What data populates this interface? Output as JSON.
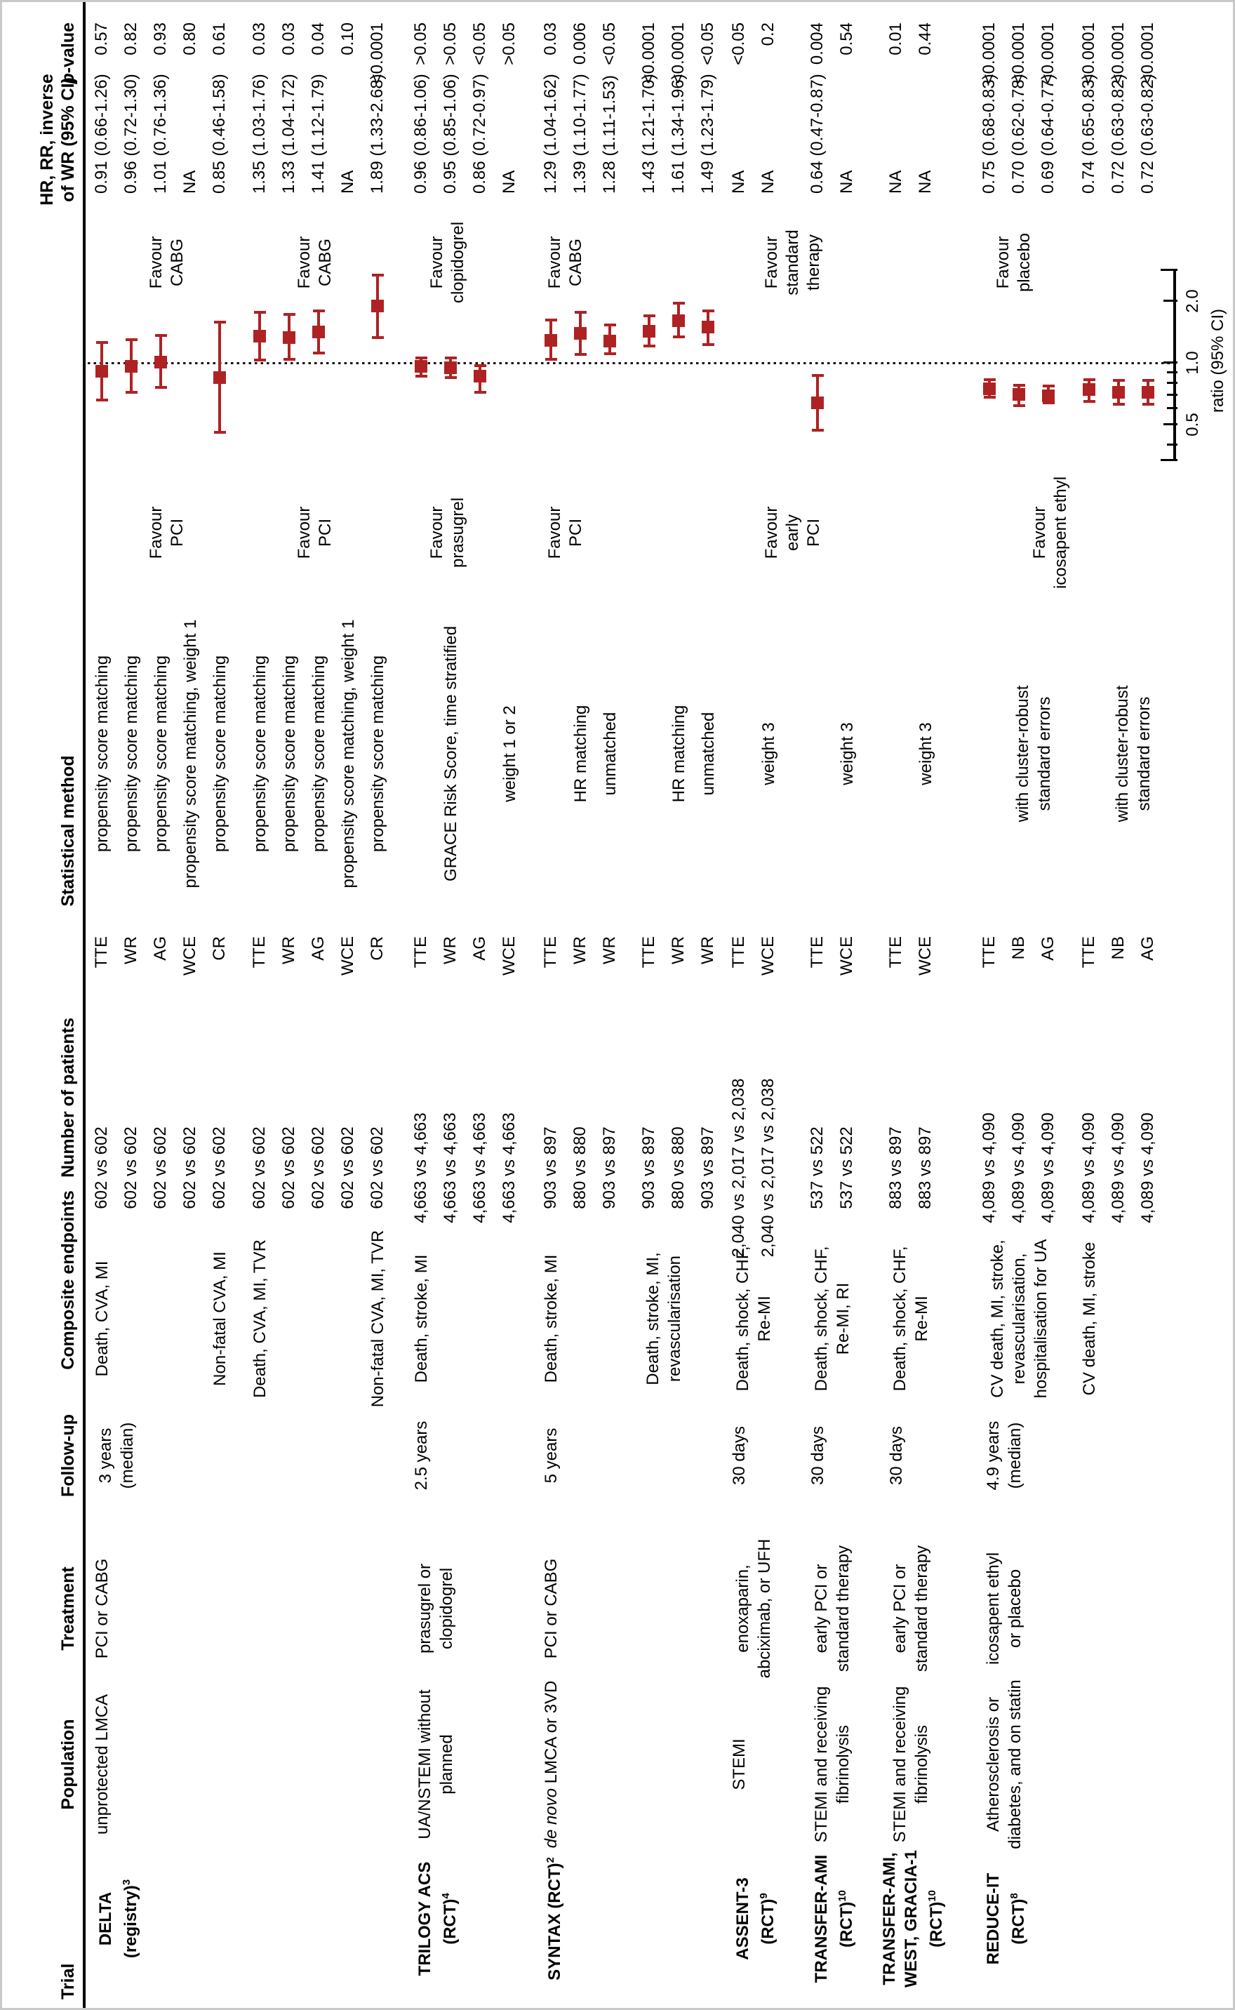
{
  "figure_type": "forest-plot-table",
  "accent_color": "#ae2224",
  "header": {
    "trial": "Trial",
    "population": "Population",
    "treatment": "Treatment",
    "followup": "Follow-up",
    "endpoints": "Composite endpoints",
    "patients": "Number of patients",
    "method": "Statistical method",
    "hr_line1": "HR, RR, inverse",
    "hr_line2": "of WR (95% CI)",
    "pvalue": "*p*-value"
  },
  "plot": {
    "axis_title": "ratio (95% CI)",
    "x_ref": 1.0,
    "scale": "log",
    "ticks": [
      {
        "v": 0.335,
        "len": 20,
        "label": ""
      },
      {
        "v": 0.4,
        "len": 11,
        "label": ""
      },
      {
        "v": 0.5,
        "len": 16,
        "label": "0.5"
      },
      {
        "v": 0.6,
        "len": 11,
        "label": ""
      },
      {
        "v": 0.7,
        "len": 11,
        "label": ""
      },
      {
        "v": 0.8,
        "len": 11,
        "label": ""
      },
      {
        "v": 0.9,
        "len": 11,
        "label": ""
      },
      {
        "v": 1.0,
        "len": 16,
        "label": "1.0"
      },
      {
        "v": 2.0,
        "len": 16,
        "label": "2.0"
      },
      {
        "v": 2.85,
        "len": 20,
        "label": ""
      }
    ]
  },
  "favours": [
    {
      "side": "left",
      "lines": [
        "Favour",
        "PCI"
      ],
      "y": 238
    },
    {
      "side": "right",
      "lines": [
        "Favour",
        "CABG"
      ],
      "y": 238
    },
    {
      "side": "left",
      "lines": [
        "Favour",
        "PCI"
      ],
      "y": 449
    },
    {
      "side": "right",
      "lines": [
        "Favour",
        "CABG"
      ],
      "y": 449
    },
    {
      "side": "left",
      "lines": [
        "Favour",
        "prasugrel"
      ],
      "y": 638
    },
    {
      "side": "right",
      "lines": [
        "Favour",
        "clopidogrel"
      ],
      "y": 638
    },
    {
      "side": "left",
      "lines": [
        "Favour",
        "PCI"
      ],
      "y": 806
    },
    {
      "side": "right",
      "lines": [
        "Favour",
        "CABG"
      ],
      "y": 806
    },
    {
      "side": "left",
      "lines": [
        "Favour",
        "early",
        "PCI"
      ],
      "y": 1130
    },
    {
      "side": "right",
      "lines": [
        "Favour",
        "standard",
        "therapy"
      ],
      "y": 1130
    },
    {
      "side": "left",
      "lines": [
        "Favour",
        "icosapent ethyl"
      ],
      "y": 1497
    },
    {
      "side": "right",
      "lines": [
        "Favour",
        "placebo"
      ],
      "y": 1445
    }
  ],
  "blocks": [
    {
      "col": "trial",
      "bold": true,
      "lines": [
        "DELTA",
        "(registry)^{3}"
      ],
      "y": 166
    },
    {
      "col": "population",
      "lines": [
        "unprotected LMCA"
      ],
      "y": 145
    },
    {
      "col": "treatment",
      "lines": [
        "PCI or CABG"
      ],
      "y": 145
    },
    {
      "col": "followup",
      "lines": [
        "3 years",
        "(median)"
      ],
      "y": 166
    },
    {
      "col": "endpoint",
      "lines": [
        "Death, CVA, MI"
      ],
      "y": 145
    },
    {
      "col": "endpoint",
      "lines": [
        "Non-fatal CVA, MI"
      ],
      "y": 313
    },
    {
      "col": "endpoint",
      "lines": [
        "Death, CVA, MI, TVR"
      ],
      "y": 370
    },
    {
      "col": "endpoint",
      "lines": [
        "Non-fatal CVA, MI, TVR"
      ],
      "y": 538
    },
    {
      "col": "trial",
      "bold": true,
      "lines": [
        "TRILOGY ACS",
        "(RCT)^{4}"
      ],
      "y": 621
    },
    {
      "col": "population",
      "lines": [
        "UA/NSTEMI without",
        "planned"
      ],
      "y": 621
    },
    {
      "col": "treatment",
      "lines": [
        "prasugrel or",
        "clopidogrel"
      ],
      "y": 621
    },
    {
      "col": "followup",
      "lines": [
        "2.5 years"
      ],
      "y": 600
    },
    {
      "col": "endpoint",
      "lines": [
        "Death, stroke, MI"
      ],
      "y": 600
    },
    {
      "col": "trial",
      "bold": true,
      "lines": [
        "SYNTAX (RCT)^{2}"
      ],
      "y": 785
    },
    {
      "col": "population",
      "lines": [
        "*de novo* LMCA or 3VD"
      ],
      "y": 785
    },
    {
      "col": "treatment",
      "lines": [
        "PCI or CABG"
      ],
      "y": 785
    },
    {
      "col": "followup",
      "lines": [
        "5 years"
      ],
      "y": 785
    },
    {
      "col": "endpoint",
      "lines": [
        "Death, stroke, MI"
      ],
      "y": 785
    },
    {
      "col": "endpoint",
      "lines": [
        "Death, stroke, MI,",
        "revascularisation"
      ],
      "y": 946
    },
    {
      "col": "trial",
      "bold": true,
      "lines": [
        "ASSENT-3",
        "(RCT)^{9}"
      ],
      "y": 1074
    },
    {
      "col": "population",
      "lines": [
        "STEMI"
      ],
      "y": 1053
    },
    {
      "col": "treatment",
      "lines": [
        "enoxaparin,",
        "abciximab, or UFH"
      ],
      "y": 1074
    },
    {
      "col": "followup",
      "lines": [
        "30 days"
      ],
      "y": 1053
    },
    {
      "col": "endpoint",
      "lines": [
        "Death, shock, CHF,",
        "Re-MI"
      ],
      "y": 1074
    },
    {
      "col": "trial",
      "bold": true,
      "lines": [
        "TRANSFER-AMI",
        "(RCT)^{10}"
      ],
      "y": 1186
    },
    {
      "col": "population",
      "lines": [
        "STEMI and receiving",
        "fibrinolysis"
      ],
      "y": 1186
    },
    {
      "col": "treatment",
      "lines": [
        "early PCI or",
        "standard therapy"
      ],
      "y": 1186
    },
    {
      "col": "followup",
      "lines": [
        "30 days"
      ],
      "y": 1165
    },
    {
      "col": "endpoint",
      "lines": [
        "Death, shock, CHF,",
        "Re-MI, RI"
      ],
      "y": 1186
    },
    {
      "col": "trial",
      "bold": true,
      "lines": [
        "TRANSFER-AMI,",
        "WEST, GRACIA-1",
        "(RCT)^{10}"
      ],
      "y": 1298
    },
    {
      "col": "population",
      "lines": [
        "STEMI and receiving",
        "fibrinolysis"
      ],
      "y": 1298
    },
    {
      "col": "treatment",
      "lines": [
        "early PCI or",
        "standard therapy"
      ],
      "y": 1298
    },
    {
      "col": "followup",
      "lines": [
        "30 days"
      ],
      "y": 1277
    },
    {
      "col": "endpoint",
      "lines": [
        "Death, shock, CHF,",
        "Re-MI"
      ],
      "y": 1298
    },
    {
      "col": "trial",
      "bold": true,
      "lines": [
        "REDUCE-IT",
        "(RCT)^{8}"
      ],
      "y": 1431
    },
    {
      "col": "population",
      "lines": [
        "Atherosclerosis or",
        "diabetes, and on statin"
      ],
      "y": 1431
    },
    {
      "col": "treatment",
      "lines": [
        "icosapent ethyl",
        "or placebo"
      ],
      "y": 1431
    },
    {
      "col": "followup",
      "lines": [
        "4.9 years",
        "(median)"
      ],
      "y": 1431
    },
    {
      "col": "endpoint",
      "lines": [
        "CV death, MI, stroke,",
        "revascularisation,",
        "hospitalisation for UA"
      ],
      "y": 1452
    },
    {
      "col": "endpoint",
      "lines": [
        "CV death, MI, stroke"
      ],
      "y": 1552
    },
    {
      "col": "method",
      "lines": [
        "propensity score matching"
      ],
      "y": 145
    },
    {
      "col": "method",
      "lines": [
        "propensity score matching"
      ],
      "y": 187
    },
    {
      "col": "method",
      "lines": [
        "propensity score matching"
      ],
      "y": 229
    },
    {
      "col": "method",
      "lines": [
        "propensity score matching, weight 1"
      ],
      "y": 271
    },
    {
      "col": "method",
      "lines": [
        "propensity score matching"
      ],
      "y": 313
    },
    {
      "col": "method",
      "lines": [
        "propensity score matching"
      ],
      "y": 370
    },
    {
      "col": "method",
      "lines": [
        "propensity score matching"
      ],
      "y": 412
    },
    {
      "col": "method",
      "lines": [
        "propensity score matching"
      ],
      "y": 454
    },
    {
      "col": "method",
      "lines": [
        "propensity score matching, weight 1"
      ],
      "y": 496
    },
    {
      "col": "method",
      "lines": [
        "propensity score matching"
      ],
      "y": 538
    },
    {
      "col": "method",
      "lines": [
        "GRACE Risk Score, time stratified"
      ],
      "y": 642
    },
    {
      "col": "method",
      "lines": [
        "weight 1 or 2"
      ],
      "y": 726
    },
    {
      "col": "method",
      "lines": [
        "HR matching"
      ],
      "y": 827
    },
    {
      "col": "method",
      "lines": [
        "unmatched"
      ],
      "y": 869
    },
    {
      "col": "method",
      "lines": [
        "HR matching"
      ],
      "y": 967
    },
    {
      "col": "method",
      "lines": [
        "unmatched"
      ],
      "y": 1009
    },
    {
      "col": "method",
      "lines": [
        "weight 3"
      ],
      "y": 1095
    },
    {
      "col": "method",
      "lines": [
        "weight 3"
      ],
      "y": 1207
    },
    {
      "col": "method",
      "lines": [
        "weight 3"
      ],
      "y": 1319
    },
    {
      "col": "method",
      "lines": [
        "with cluster-robust",
        "standard errors"
      ],
      "y": 1473
    },
    {
      "col": "method",
      "lines": [
        "with cluster-robust",
        "standard errors"
      ],
      "y": 1615
    }
  ],
  "rows": [
    {
      "y": 145,
      "code": "TTE",
      "patients": "602 vs 602",
      "hr": "0.91 (0.66-1.26)",
      "p": "0.57",
      "pt": [
        0.91,
        0.66,
        1.26
      ]
    },
    {
      "y": 187,
      "code": "WR",
      "patients": "602 vs 602",
      "hr": "0.96 (0.72-1.30)",
      "p": "0.82",
      "pt": [
        0.96,
        0.72,
        1.3
      ]
    },
    {
      "y": 229,
      "code": "AG",
      "patients": "602 vs 602",
      "hr": "1.01 (0.76-1.36)",
      "p": "0.93",
      "pt": [
        1.01,
        0.76,
        1.36
      ]
    },
    {
      "y": 271,
      "code": "WCE",
      "patients": "602 vs 602",
      "hr": "NA",
      "p": "0.80",
      "pt": null
    },
    {
      "y": 313,
      "code": "CR",
      "patients": "602 vs 602",
      "hr": "0.85 (0.46-1.58)",
      "p": "0.61",
      "pt": [
        0.85,
        0.46,
        1.58
      ]
    },
    {
      "y": 370,
      "code": "TTE",
      "patients": "602 vs 602",
      "hr": "1.35 (1.03-1.76)",
      "p": "0.03",
      "pt": [
        1.35,
        1.03,
        1.76
      ]
    },
    {
      "y": 412,
      "code": "WR",
      "patients": "602 vs 602",
      "hr": "1.33 (1.04-1.72)",
      "p": "0.03",
      "pt": [
        1.33,
        1.04,
        1.72
      ]
    },
    {
      "y": 454,
      "code": "AG",
      "patients": "602 vs 602",
      "hr": "1.41 (1.12-1.79)",
      "p": "0.04",
      "pt": [
        1.41,
        1.12,
        1.79
      ]
    },
    {
      "y": 496,
      "code": "WCE",
      "patients": "602 vs 602",
      "hr": "NA",
      "p": "0.10",
      "pt": null
    },
    {
      "y": 538,
      "code": "CR",
      "patients": "602 vs 602",
      "hr": "1.89 (1.33-2.68)",
      "p": "<0.0001",
      "pt": [
        1.89,
        1.33,
        2.68
      ]
    },
    {
      "y": 600,
      "code": "TTE",
      "patients": "4,663 vs 4,663",
      "hr": "0.96 (0.86-1.06)",
      "p": ">0.05",
      "pt": [
        0.96,
        0.86,
        1.06
      ]
    },
    {
      "y": 642,
      "code": "WR",
      "patients": "4,663 vs 4,663",
      "hr": "0.95 (0.85-1.06)",
      "p": ">0.05",
      "pt": [
        0.95,
        0.85,
        1.06
      ]
    },
    {
      "y": 684,
      "code": "AG",
      "patients": "4,663 vs 4,663",
      "hr": "0.86 (0.72-0.97)",
      "p": "<0.05",
      "pt": [
        0.86,
        0.72,
        0.97
      ]
    },
    {
      "y": 726,
      "code": "WCE",
      "patients": "4,663 vs 4,663",
      "hr": "NA",
      "p": ">0.05",
      "pt": null
    },
    {
      "y": 785,
      "code": "TTE",
      "patients": "903 vs 897",
      "hr": "1.29 (1.04-1.62)",
      "p": "0.03",
      "pt": [
        1.29,
        1.04,
        1.62
      ]
    },
    {
      "y": 827,
      "code": "WR",
      "patients": "880 vs 880",
      "hr": "1.39 (1.10-1.77)",
      "p": "0.006",
      "pt": [
        1.39,
        1.1,
        1.77
      ]
    },
    {
      "y": 869,
      "code": "WR",
      "patients": "903 vs 897",
      "hr": "1.28 (1.11-1.53)",
      "p": "<0.05",
      "pt": [
        1.28,
        1.11,
        1.53
      ]
    },
    {
      "y": 925,
      "code": "TTE",
      "patients": "903 vs 897",
      "hr": "1.43 (1.21-1.70)",
      "p": "<0.0001",
      "pt": [
        1.43,
        1.21,
        1.7
      ]
    },
    {
      "y": 967,
      "code": "WR",
      "patients": "880 vs 880",
      "hr": "1.61 (1.34-1.96)",
      "p": "<0.0001",
      "pt": [
        1.61,
        1.34,
        1.96
      ]
    },
    {
      "y": 1009,
      "code": "WR",
      "patients": "903 vs 897",
      "hr": "1.49 (1.23-1.79)",
      "p": "<0.05",
      "pt": [
        1.49,
        1.23,
        1.79
      ]
    },
    {
      "y": 1053,
      "code": "TTE",
      "patients": "2,040 vs 2,017 vs 2,038",
      "hr": "NA",
      "p": "<0.05",
      "pt": null
    },
    {
      "y": 1095,
      "code": "WCE",
      "patients": "2,040 vs 2,017 vs 2,038",
      "hr": "NA",
      "p": "0.2",
      "pt": null
    },
    {
      "y": 1165,
      "code": "TTE",
      "patients": "537 vs 522",
      "hr": "0.64 (0.47-0.87)",
      "p": "0.004",
      "pt": [
        0.64,
        0.47,
        0.87
      ]
    },
    {
      "y": 1207,
      "code": "WCE",
      "patients": "537 vs 522",
      "hr": "NA",
      "p": "0.54",
      "pt": null
    },
    {
      "y": 1277,
      "code": "TTE",
      "patients": "883 vs 897",
      "hr": "NA",
      "p": "0.01",
      "pt": null
    },
    {
      "y": 1319,
      "code": "WCE",
      "patients": "883 vs 897",
      "hr": "NA",
      "p": "0.44",
      "pt": null
    },
    {
      "y": 1410,
      "code": "TTE",
      "patients": "4,089 vs 4,090",
      "hr": "0.75 (0.68-0.83)",
      "p": "<0.0001",
      "pt": [
        0.75,
        0.68,
        0.83
      ]
    },
    {
      "y": 1452,
      "code": "NB",
      "patients": "4,089 vs 4,090",
      "hr": "0.70 (0.62-0.78)",
      "p": "<0.0001",
      "pt": [
        0.7,
        0.62,
        0.78
      ]
    },
    {
      "y": 1494,
      "code": "AG",
      "patients": "4,089 vs 4,090",
      "hr": "0.69 (0.64-0.77)",
      "p": "<0.0001",
      "pt": [
        0.69,
        0.64,
        0.77
      ]
    },
    {
      "y": 1552,
      "code": "TTE",
      "patients": "4,089 vs 4,090",
      "hr": "0.74 (0.65-0.83)",
      "p": "<0.0001",
      "pt": [
        0.74,
        0.65,
        0.83
      ]
    },
    {
      "y": 1594,
      "code": "NB",
      "patients": "4,089 vs 4,090",
      "hr": "0.72 (0.63-0.82)",
      "p": "<0.0001",
      "pt": [
        0.72,
        0.63,
        0.82
      ]
    },
    {
      "y": 1636,
      "code": "AG",
      "patients": "4,089 vs 4,090",
      "hr": "0.72 (0.63-0.82)",
      "p": "<0.0001",
      "pt": [
        0.72,
        0.63,
        0.82
      ]
    }
  ],
  "chart_data": {
    "type": "scatter",
    "subtype": "forest-plot",
    "xlabel": "ratio (95% CI)",
    "xscale": "log",
    "xticks": [
      0.5,
      1.0,
      2.0
    ],
    "xlim": [
      0.335,
      2.85
    ],
    "reference_line": 1.0,
    "marker_color": "#ae2224",
    "points": [
      {
        "trial": "DELTA (registry)",
        "method": "TTE",
        "ratio": 0.91,
        "ci": [
          0.66,
          1.26
        ]
      },
      {
        "trial": "DELTA (registry)",
        "method": "WR",
        "ratio": 0.96,
        "ci": [
          0.72,
          1.3
        ]
      },
      {
        "trial": "DELTA (registry)",
        "method": "AG",
        "ratio": 1.01,
        "ci": [
          0.76,
          1.36
        ]
      },
      {
        "trial": "DELTA (registry)",
        "method": "CR",
        "ratio": 0.85,
        "ci": [
          0.46,
          1.58
        ]
      },
      {
        "trial": "DELTA (registry)",
        "method": "TTE",
        "ratio": 1.35,
        "ci": [
          1.03,
          1.76
        ]
      },
      {
        "trial": "DELTA (registry)",
        "method": "WR",
        "ratio": 1.33,
        "ci": [
          1.04,
          1.72
        ]
      },
      {
        "trial": "DELTA (registry)",
        "method": "AG",
        "ratio": 1.41,
        "ci": [
          1.12,
          1.79
        ]
      },
      {
        "trial": "DELTA (registry)",
        "method": "CR",
        "ratio": 1.89,
        "ci": [
          1.33,
          2.68
        ]
      },
      {
        "trial": "TRILOGY ACS (RCT)",
        "method": "TTE",
        "ratio": 0.96,
        "ci": [
          0.86,
          1.06
        ]
      },
      {
        "trial": "TRILOGY ACS (RCT)",
        "method": "WR",
        "ratio": 0.95,
        "ci": [
          0.85,
          1.06
        ]
      },
      {
        "trial": "TRILOGY ACS (RCT)",
        "method": "AG",
        "ratio": 0.86,
        "ci": [
          0.72,
          0.97
        ]
      },
      {
        "trial": "SYNTAX (RCT)",
        "method": "TTE",
        "ratio": 1.29,
        "ci": [
          1.04,
          1.62
        ]
      },
      {
        "trial": "SYNTAX (RCT)",
        "method": "WR",
        "ratio": 1.39,
        "ci": [
          1.1,
          1.77
        ]
      },
      {
        "trial": "SYNTAX (RCT)",
        "method": "WR",
        "ratio": 1.28,
        "ci": [
          1.11,
          1.53
        ]
      },
      {
        "trial": "SYNTAX (RCT)",
        "method": "TTE",
        "ratio": 1.43,
        "ci": [
          1.21,
          1.7
        ]
      },
      {
        "trial": "SYNTAX (RCT)",
        "method": "WR",
        "ratio": 1.61,
        "ci": [
          1.34,
          1.96
        ]
      },
      {
        "trial": "SYNTAX (RCT)",
        "method": "WR",
        "ratio": 1.49,
        "ci": [
          1.23,
          1.79
        ]
      },
      {
        "trial": "TRANSFER-AMI (RCT)",
        "method": "TTE",
        "ratio": 0.64,
        "ci": [
          0.47,
          0.87
        ]
      },
      {
        "trial": "REDUCE-IT (RCT)",
        "method": "TTE",
        "ratio": 0.75,
        "ci": [
          0.68,
          0.83
        ]
      },
      {
        "trial": "REDUCE-IT (RCT)",
        "method": "NB",
        "ratio": 0.7,
        "ci": [
          0.62,
          0.78
        ]
      },
      {
        "trial": "REDUCE-IT (RCT)",
        "method": "AG",
        "ratio": 0.69,
        "ci": [
          0.64,
          0.77
        ]
      },
      {
        "trial": "REDUCE-IT (RCT)",
        "method": "TTE",
        "ratio": 0.74,
        "ci": [
          0.65,
          0.83
        ]
      },
      {
        "trial": "REDUCE-IT (RCT)",
        "method": "NB",
        "ratio": 0.72,
        "ci": [
          0.63,
          0.82
        ]
      },
      {
        "trial": "REDUCE-IT (RCT)",
        "method": "AG",
        "ratio": 0.72,
        "ci": [
          0.63,
          0.82
        ]
      }
    ]
  }
}
